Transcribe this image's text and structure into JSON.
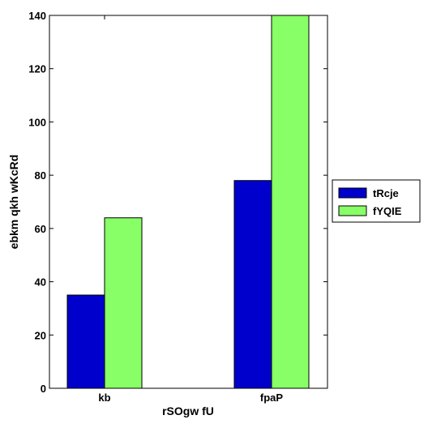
{
  "chart_data": {
    "type": "bar",
    "categories": [
      "kb",
      "fpaP"
    ],
    "series": [
      {
        "name": "tRcje",
        "values": [
          35,
          78
        ],
        "color": "#0000cc"
      },
      {
        "name": "fYQIE",
        "values": [
          64,
          140
        ],
        "color": "#88ff66"
      }
    ],
    "title": "",
    "xlabel": "rSOgw fU",
    "ylabel": "ebkm qkh wKcRd",
    "ylim": [
      0,
      140
    ],
    "yticks": [
      0,
      20,
      40,
      60,
      80,
      100,
      120,
      140
    ],
    "grid": false,
    "legend_position": "outside-right"
  }
}
